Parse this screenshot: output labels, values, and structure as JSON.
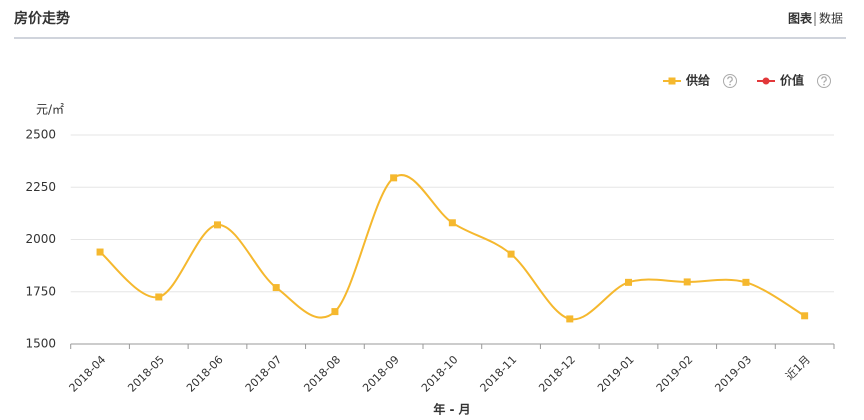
{
  "header": {
    "title": "房价走势",
    "tabs": [
      "图表",
      "数据"
    ]
  },
  "chart_data": {
    "type": "line",
    "y_unit": "元/㎡",
    "x_label": "年 - 月",
    "categories": [
      "2018-04",
      "2018-05",
      "2018-06",
      "2018-07",
      "2018-08",
      "2018-09",
      "2018-10",
      "2018-11",
      "2018-12",
      "2019-01",
      "2019-02",
      "2019-03",
      "近1月"
    ],
    "series": [
      {
        "name": "供给",
        "color": "#f5b82e",
        "values": [
          1940,
          1725,
          2070,
          1770,
          1655,
          2295,
          2080,
          1930,
          1620,
          1795,
          1797,
          1795,
          1635
        ]
      },
      {
        "name": "价值",
        "color": "#e2383a",
        "values": [
          null,
          null,
          null,
          null,
          null,
          null,
          null,
          null,
          null,
          null,
          null,
          null,
          null
        ]
      }
    ],
    "ylim": [
      1500,
      2500
    ],
    "yticks": [
      1500,
      1750,
      2000,
      2250,
      2500
    ],
    "grid": true,
    "smooth": true
  }
}
